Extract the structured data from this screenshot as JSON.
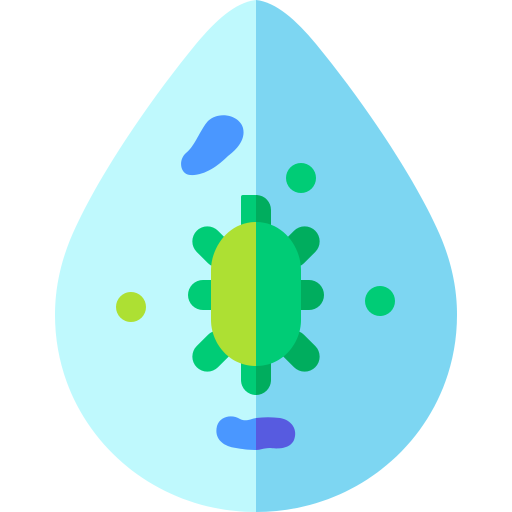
{
  "icon": {
    "name": "water-drop-germ-icon",
    "colors": {
      "drop_left": "#BFF9FD",
      "drop_right": "#7DD6F2",
      "germ_body_left": "#ADE033",
      "germ_body_right": "#00CC76",
      "germ_leg_left": "#00CC76",
      "germ_leg_right": "#00AD5E",
      "blob_blue": "#4A97FF",
      "blob_indigo": "#575BE0",
      "dot_green": "#00CC76",
      "dot_lime": "#ADE033"
    }
  }
}
